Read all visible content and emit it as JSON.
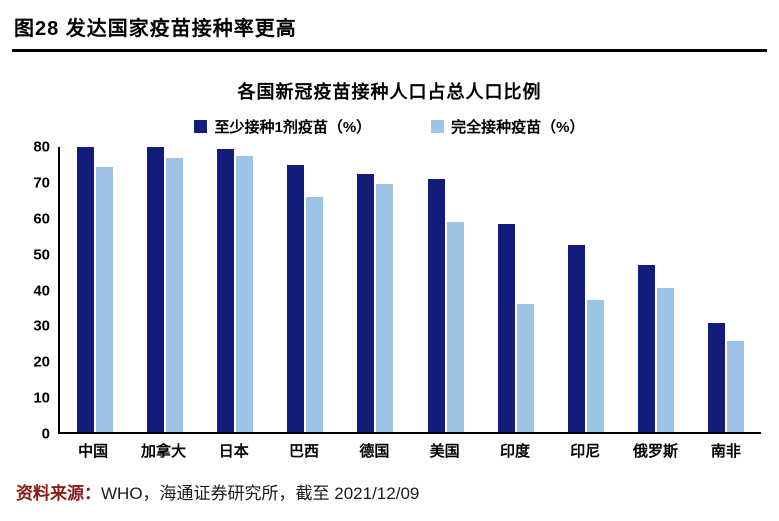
{
  "header": {
    "title": "图28 发达国家疫苗接种率更高"
  },
  "chart_data": {
    "type": "bar",
    "title": "各国新冠疫苗接种人口占总人口比例",
    "categories": [
      "中国",
      "加拿大",
      "日本",
      "巴西",
      "德国",
      "美国",
      "印度",
      "印尼",
      "俄罗斯",
      "南非"
    ],
    "series": [
      {
        "name": "至少接种1剂疫苗（%）",
        "color": "#131c7b",
        "values": [
          80,
          80,
          79.5,
          75,
          72.5,
          71,
          58.5,
          52.5,
          47,
          30.5
        ]
      },
      {
        "name": "完全接种疫苗（%）",
        "color": "#9dc3e6",
        "values": [
          74.5,
          77,
          77.5,
          66,
          69.5,
          59,
          36,
          37,
          40.5,
          25.5
        ]
      }
    ],
    "xlabel": "",
    "ylabel": "",
    "ylim": [
      0,
      80
    ],
    "ytick_step": 10,
    "grid": false,
    "legend_position": "top"
  },
  "footer": {
    "source_label": "资料来源：",
    "source_text": "WHO，海通证券研究所，截至 2021/12/09"
  }
}
